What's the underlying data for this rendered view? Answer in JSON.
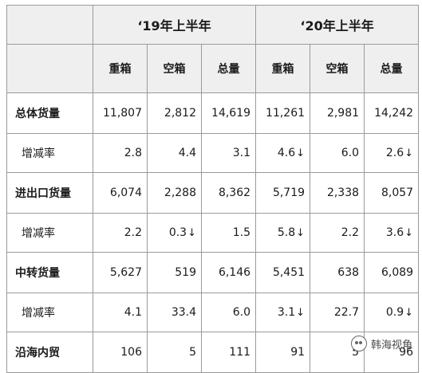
{
  "table": {
    "periods": [
      "‘19年上半年",
      "‘20年上半年"
    ],
    "subheaders": [
      "重箱",
      "空箱",
      "总量",
      "重箱",
      "空箱",
      "总量"
    ],
    "rows": [
      {
        "label": "总体货量",
        "type": "main",
        "cells": [
          {
            "v": "11,807",
            "arrow": ""
          },
          {
            "v": "2,812",
            "arrow": ""
          },
          {
            "v": "14,619",
            "arrow": ""
          },
          {
            "v": "11,261",
            "arrow": ""
          },
          {
            "v": "2,981",
            "arrow": ""
          },
          {
            "v": "14,242",
            "arrow": ""
          }
        ]
      },
      {
        "label": "增减率",
        "type": "sub",
        "cells": [
          {
            "v": "2.8",
            "arrow": ""
          },
          {
            "v": "4.4",
            "arrow": ""
          },
          {
            "v": "3.1",
            "arrow": ""
          },
          {
            "v": "4.6",
            "arrow": "↓"
          },
          {
            "v": "6.0",
            "arrow": ""
          },
          {
            "v": "2.6",
            "arrow": "↓"
          }
        ]
      },
      {
        "label": "进出口货量",
        "type": "main",
        "cells": [
          {
            "v": "6,074",
            "arrow": ""
          },
          {
            "v": "2,288",
            "arrow": ""
          },
          {
            "v": "8,362",
            "arrow": ""
          },
          {
            "v": "5,719",
            "arrow": ""
          },
          {
            "v": "2,338",
            "arrow": ""
          },
          {
            "v": "8,057",
            "arrow": ""
          }
        ]
      },
      {
        "label": "增减率",
        "type": "sub",
        "cells": [
          {
            "v": "2.2",
            "arrow": ""
          },
          {
            "v": "0.3",
            "arrow": "↓"
          },
          {
            "v": "1.5",
            "arrow": ""
          },
          {
            "v": "5.8",
            "arrow": "↓"
          },
          {
            "v": "2.2",
            "arrow": ""
          },
          {
            "v": "3.6",
            "arrow": "↓"
          }
        ]
      },
      {
        "label": "中转货量",
        "type": "main",
        "cells": [
          {
            "v": "5,627",
            "arrow": ""
          },
          {
            "v": "519",
            "arrow": ""
          },
          {
            "v": "6,146",
            "arrow": ""
          },
          {
            "v": "5,451",
            "arrow": ""
          },
          {
            "v": "638",
            "arrow": ""
          },
          {
            "v": "6,089",
            "arrow": ""
          }
        ]
      },
      {
        "label": "增减率",
        "type": "sub",
        "cells": [
          {
            "v": "4.1",
            "arrow": ""
          },
          {
            "v": "33.4",
            "arrow": ""
          },
          {
            "v": "6.0",
            "arrow": ""
          },
          {
            "v": "3.1",
            "arrow": "↓"
          },
          {
            "v": "22.7",
            "arrow": ""
          },
          {
            "v": "0.9",
            "arrow": "↓"
          }
        ]
      },
      {
        "label": "沿海内贸",
        "type": "main",
        "cells": [
          {
            "v": "106",
            "arrow": ""
          },
          {
            "v": "5",
            "arrow": ""
          },
          {
            "v": "111",
            "arrow": ""
          },
          {
            "v": "91",
            "arrow": ""
          },
          {
            "v": "5",
            "arrow": ""
          },
          {
            "v": "96",
            "arrow": ""
          }
        ]
      }
    ]
  },
  "watermark": {
    "icon": "wechat-logo-icon",
    "text": "韩海视角"
  },
  "colors": {
    "header_bg": "#efefef",
    "border": "#9a9a9a"
  }
}
